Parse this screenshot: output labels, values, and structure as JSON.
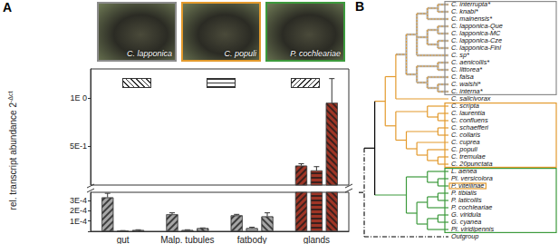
{
  "chart_data": {
    "type": "bar",
    "label": "A",
    "ylabel": {
      "text": "rel. transcript abundance 2",
      "superscript": "-Δct"
    },
    "categories": [
      "gut",
      "Malp. tubules",
      "fatbody",
      "glands"
    ],
    "grid": false,
    "y_segments": [
      {
        "ylim": [
          0,
          0.00038
        ],
        "yticks": [
          0,
          {
            "value": 0.0001,
            "label": "1E-4"
          },
          {
            "value": 0.0002,
            "label": "2E-4"
          },
          {
            "value": 0.0003,
            "label": "3E-4"
          }
        ]
      },
      {
        "ylim": [
          0.1,
          1.3
        ],
        "yticks": [
          {
            "value": 0.5,
            "label": "5E-1"
          },
          {
            "value": 1,
            "label": "1E 0"
          }
        ]
      }
    ],
    "series": [
      {
        "name": "C. lapponica",
        "colors": [
          "#a6a6a6",
          "#a6a6a6",
          "#a6a6a6",
          "#9e3526"
        ],
        "values": [
          0.00033,
          0.000165,
          0.000155,
          0.3
        ],
        "errors": [
          4e-05,
          1.5e-05,
          1e-05,
          0.02
        ]
      },
      {
        "name": "C. populi",
        "colors": [
          "#a6a6a6",
          "#a6a6a6",
          "#a6a6a6",
          "#9e3526"
        ],
        "values": [
          5e-06,
          1.2e-05,
          3e-05,
          0.25
        ],
        "errors": [
          2e-06,
          3e-06,
          1e-05,
          0.04
        ]
      },
      {
        "name": "P. cochleariae",
        "colors": [
          "#a6a6a6",
          "#a6a6a6",
          "#a6a6a6",
          "#9e3526"
        ],
        "values": [
          1.2e-05,
          3e-05,
          0.000145,
          0.95
        ],
        "errors": [
          3e-06,
          3e-06,
          3.5e-05,
          0.25
        ]
      }
    ]
  },
  "tree": {
    "label": "B",
    "root": {
      "color": "#000000",
      "line_style": "dashdot",
      "children": [
        {
          "color": "#000000",
          "line_style": "solid",
          "children": [
            {
              "color": "#e39a2d",
              "line_style": "solid",
              "children": [
                {
                  "children": [
                    {
                      "color": "#e39a2d",
                      "line_style": "dashed",
                      "children": [
                        {
                          "children": [
                            {
                              "children": [
                                {
                                  "children": [
                                    {
                                      "name": "C. interrupta*"
                                    },
                                    {
                                      "name": "C. knabi*"
                                    }
                                  ]
                                },
                                {
                                  "name": "C. mainensis*"
                                }
                              ]
                            },
                            {
                              "children": [
                                {
                                  "children": [
                                    {
                                      "name": "C. lapponica-Que"
                                    },
                                    {
                                      "name": "C. lapponica-MC"
                                    }
                                  ]
                                },
                                {
                                  "children": [
                                    {
                                      "name": "C. lapponica-Cze"
                                    },
                                    {
                                      "name": "C. lapponica-Finl"
                                    }
                                  ]
                                }
                              ]
                            },
                            {
                              "name": "C. sp*"
                            }
                          ]
                        },
                        {
                          "children": [
                            {
                              "children": [
                                {
                                  "name": "C. aenicollis*"
                                },
                                {
                                  "name": "C. littorea*"
                                }
                              ]
                            },
                            {
                              "children": [
                                {
                                  "name": "C. falsa"
                                },
                                {
                                  "children": [
                                    {
                                      "name": "C. walshi*"
                                    },
                                    {
                                      "name": "C. interna*"
                                    }
                                  ]
                                }
                              ]
                            }
                          ]
                        }
                      ]
                    },
                    {
                      "name": "C. salicivorax",
                      "line_style": "solid"
                    }
                  ]
                },
                {
                  "children": [
                    {
                      "children": [
                        {
                          "name": "C. scripta"
                        },
                        {
                          "children": [
                            {
                              "name": "C. laurentia"
                            },
                            {
                              "name": "C. confluens"
                            }
                          ]
                        }
                      ]
                    },
                    {
                      "children": [
                        {
                          "children": [
                            {
                              "name": "C. schaefferi"
                            },
                            {
                              "name": "C. collaris"
                            }
                          ]
                        },
                        {
                          "children": [
                            {
                              "name": "C. cuprea"
                            },
                            {
                              "children": [
                                {
                                  "name": "C. populi"
                                },
                                {
                                  "children": [
                                    {
                                      "name": "C. tremulae"
                                    },
                                    {
                                      "name": "C. 20punctata"
                                    }
                                  ]
                                }
                              ]
                            }
                          ]
                        }
                      ]
                    }
                  ]
                }
              ]
            },
            {
              "color": "#3c9a3c",
              "line_style": "solid",
              "children": [
                {
                  "children": [
                    {
                      "name": "L. aenea"
                    },
                    {
                      "children": [
                        {
                          "name": "Pl. versicolora"
                        },
                        {
                          "name": "P. vitellinae"
                        }
                      ]
                    }
                  ]
                },
                {
                  "children": [
                    {
                      "children": [
                        {
                          "children": [
                            {
                              "name": "P. tibialis"
                            },
                            {
                              "name": "P. laticollis"
                            }
                          ]
                        },
                        {
                          "name": "P. cochleariae"
                        }
                      ]
                    },
                    {
                      "children": [
                        {
                          "children": [
                            {
                              "name": "G. viridula"
                            },
                            {
                              "name": "G. cyanea"
                            }
                          ]
                        },
                        {
                          "name": "Pl. viridipennis"
                        }
                      ]
                    }
                  ]
                }
              ]
            }
          ]
        },
        {
          "name": "Outgroup"
        }
      ]
    },
    "boxes": [
      {
        "first": "C. interrupta*",
        "last": "C. interna*",
        "color": "#8c8c8c"
      },
      {
        "first": "C. scripta",
        "last": "C. 20punctata",
        "color": "#e39a2d"
      },
      {
        "first": "L. aenea",
        "last": "Pl. viridipennis",
        "color": "#3c9a3c"
      },
      {
        "first": "P. vitellinae",
        "last": "P. vitellinae",
        "color": "#e39a2d"
      }
    ]
  }
}
